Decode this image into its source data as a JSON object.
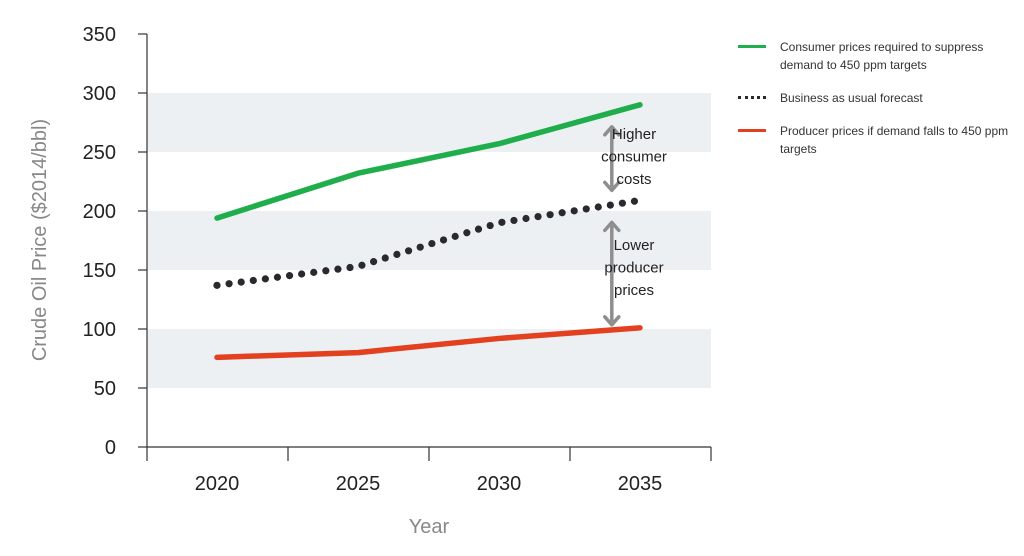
{
  "chart_data": {
    "type": "line",
    "xlabel": "Year",
    "ylabel": "Crude Oil Price ($2014/bbl)",
    "x": [
      2020,
      2025,
      2030,
      2035
    ],
    "x_tick_labels": [
      "2020",
      "2025",
      "2030",
      "2035"
    ],
    "y_ticks": [
      0,
      50,
      100,
      150,
      200,
      250,
      300,
      350
    ],
    "y_tick_labels": [
      "0",
      "50",
      "100",
      "150",
      "200",
      "250",
      "300",
      "350"
    ],
    "ylim": [
      0,
      350
    ],
    "grid": "alternating horizontal bands",
    "legend_position": "right",
    "series": [
      {
        "name": "Consumer prices required to suppress demand to 450 ppm targets",
        "style": "solid",
        "color": "#1fae4b",
        "values": [
          194,
          232,
          257,
          290
        ]
      },
      {
        "name": "Business as usual forecast",
        "style": "dotted",
        "color": "#2a2a2e",
        "values": [
          137,
          153,
          190,
          209
        ]
      },
      {
        "name": "Producer prices if demand falls to 450 ppm targets",
        "style": "solid",
        "color": "#e2401f",
        "values": [
          76,
          80,
          92,
          101
        ]
      }
    ],
    "annotations": [
      {
        "text": [
          "Higher",
          "consumer",
          "costs"
        ],
        "arrow_from": 209,
        "arrow_to": 290,
        "x": 2034
      },
      {
        "text": [
          "Lower",
          "producer",
          "prices"
        ],
        "arrow_from": 101,
        "arrow_to": 209,
        "x": 2034
      }
    ]
  },
  "colors": {
    "band": "#edf0f3",
    "axis": "#333333",
    "arrow": "#8e8e8e"
  }
}
